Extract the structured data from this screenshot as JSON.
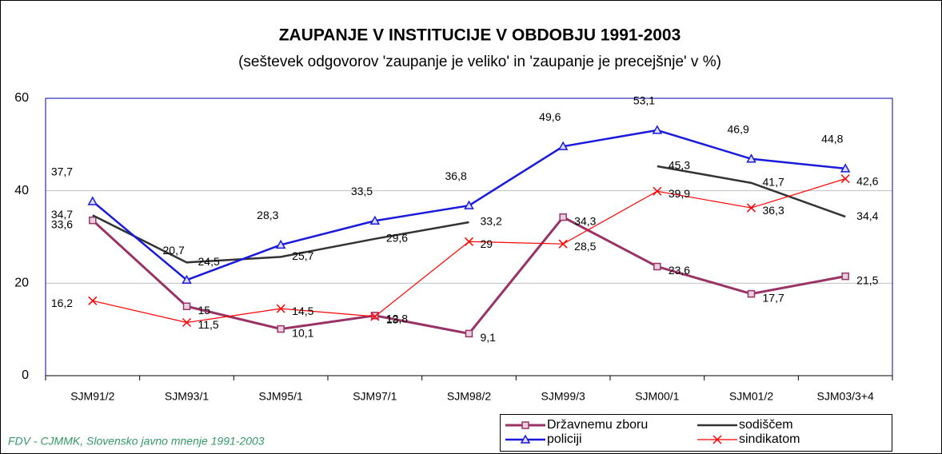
{
  "chart_data": {
    "type": "line",
    "title": "ZAUPANJE V INSTITUCIJE V OBDOBJU 1991-2003",
    "subtitle": "(seštevek odgovorov 'zaupanje je veliko' in 'zaupanje je precejšnje' v %)",
    "source": "FDV - CJMMK, Slovensko javno mnenje 1991-2003",
    "categories": [
      "SJM91/2",
      "SJM93/1",
      "SJM95/1",
      "SJM97/1",
      "SJM98/2",
      "SJM99/3",
      "SJM00/1",
      "SJM01/2",
      "SJM03/3+4"
    ],
    "ylim": [
      0,
      60
    ],
    "yticks": [
      0,
      20,
      40,
      60
    ],
    "grid": true,
    "series": [
      {
        "name": "Državnemu zboru",
        "color": "#993366",
        "marker": "square",
        "width": 3,
        "values": [
          33.6,
          15,
          10.1,
          13,
          9.1,
          34.3,
          23.6,
          17.7,
          21.5
        ],
        "value_labels": [
          "33,6",
          "15",
          "10,1",
          "13",
          "9,1",
          "34,3",
          "23,6",
          "17,7",
          "21,5"
        ]
      },
      {
        "name": "sodiščem",
        "color": "#333333",
        "marker": "none",
        "width": 2.5,
        "values": [
          34.7,
          24.5,
          25.7,
          29.6,
          33.2,
          null,
          45.3,
          41.7,
          34.4
        ],
        "value_labels": [
          "34,7",
          "24,5",
          "25,7",
          "29,6",
          "33,2",
          null,
          "45,3",
          "41,7",
          "34,4"
        ]
      },
      {
        "name": "policiji",
        "color": "#1a1adb",
        "marker": "triangle",
        "width": 2.5,
        "values": [
          37.7,
          20.7,
          28.3,
          33.5,
          36.8,
          49.6,
          53.1,
          46.9,
          44.8
        ],
        "value_labels": [
          "37,7",
          "20,7",
          "28,3",
          "33,5",
          "36,8",
          "49,6",
          "53,1",
          "46,9",
          "44,8"
        ]
      },
      {
        "name": "sindikatom",
        "color": "#ff0000",
        "marker": "x",
        "width": 1.2,
        "values": [
          16.2,
          11.5,
          14.5,
          12.8,
          29,
          28.5,
          39.9,
          36.3,
          42.6
        ],
        "value_labels": [
          "16,2",
          "11,5",
          "14,5",
          "12,8",
          "29",
          "28,5",
          "39,9",
          "36,3",
          "42,6"
        ]
      }
    ]
  }
}
